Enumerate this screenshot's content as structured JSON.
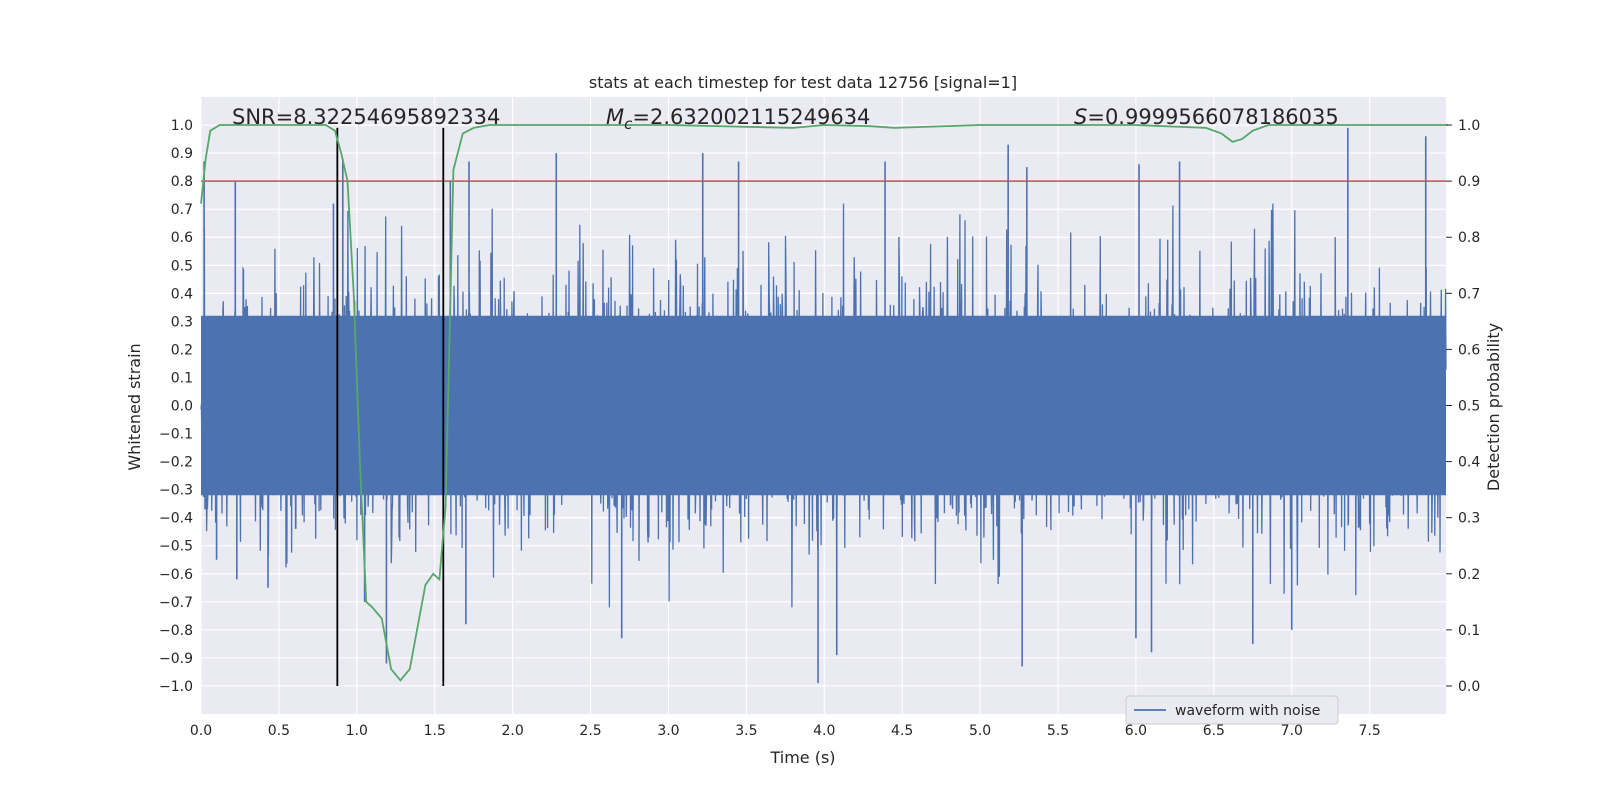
{
  "chart_data": {
    "type": "line",
    "title": "stats at each timestep for test data 12756 [signal=1]",
    "xlabel": "Time (s)",
    "ylabel": "Whitened strain",
    "y2label": "Detection probability",
    "xlim": [
      0.0,
      7.99
    ],
    "ylim": [
      -1.1,
      1.1
    ],
    "y2lim": [
      -0.05,
      1.05
    ],
    "x_ticks": [
      0.0,
      0.5,
      1.0,
      1.5,
      2.0,
      2.5,
      3.0,
      3.5,
      4.0,
      4.5,
      5.0,
      5.5,
      6.0,
      6.5,
      7.0,
      7.5
    ],
    "x_tick_labels": [
      "0.0",
      "0.5",
      "1.0",
      "1.5",
      "2.0",
      "2.5",
      "3.0",
      "3.5",
      "4.0",
      "4.5",
      "5.0",
      "5.5",
      "6.0",
      "6.5",
      "7.0",
      "7.5"
    ],
    "y_ticks": [
      -1.0,
      -0.9,
      -0.8,
      -0.7,
      -0.6,
      -0.5,
      -0.4,
      -0.3,
      -0.2,
      -0.1,
      0.0,
      0.1,
      0.2,
      0.3,
      0.4,
      0.5,
      0.6,
      0.7,
      0.8,
      0.9,
      1.0
    ],
    "y_tick_labels": [
      "−1.0",
      "−0.9",
      "−0.8",
      "−0.7",
      "−0.6",
      "−0.5",
      "−0.4",
      "−0.3",
      "−0.2",
      "−0.1",
      "0.0",
      "0.1",
      "0.2",
      "0.3",
      "0.4",
      "0.5",
      "0.6",
      "0.7",
      "0.8",
      "0.9",
      "1.0"
    ],
    "y2_ticks": [
      0.0,
      0.1,
      0.2,
      0.3,
      0.4,
      0.5,
      0.6,
      0.7,
      0.8,
      0.9,
      1.0
    ],
    "y2_tick_labels": [
      "0.0",
      "0.1",
      "0.2",
      "0.3",
      "0.4",
      "0.5",
      "0.6",
      "0.7",
      "0.8",
      "0.9",
      "1.0"
    ],
    "grid": true,
    "legend_placement": "lower-right",
    "annotations": {
      "snr": "SNR=8.32254695892334",
      "mc_symbol": "M",
      "mc_sub": "c",
      "mc_value": "=2.632002115249634",
      "s_symbol": "S",
      "s_value": "=0.9999566078186035"
    },
    "series": [
      {
        "name": "waveform with noise",
        "axis": "left",
        "color": "#4c72b0",
        "style": "dense noise trace, amplitude roughly ±0.5 with spikes up to ±1.0",
        "spikes": [
          {
            "x": 0.02,
            "y": 0.87
          },
          {
            "x": 0.22,
            "y": 0.8
          },
          {
            "x": 0.85,
            "y": 0.72
          },
          {
            "x": 0.91,
            "y": 0.88
          },
          {
            "x": 1.6,
            "y": 0.8
          },
          {
            "x": 1.72,
            "y": 0.87
          },
          {
            "x": 2.28,
            "y": 0.9
          },
          {
            "x": 3.22,
            "y": 0.9
          },
          {
            "x": 3.45,
            "y": 0.87
          },
          {
            "x": 4.39,
            "y": 0.87
          },
          {
            "x": 5.18,
            "y": 0.93
          },
          {
            "x": 5.3,
            "y": 0.85
          },
          {
            "x": 6.02,
            "y": 0.86
          },
          {
            "x": 6.28,
            "y": 0.87
          },
          {
            "x": 7.36,
            "y": 0.99
          },
          {
            "x": 7.86,
            "y": 0.96
          },
          {
            "x": 0.1,
            "y": -0.55
          },
          {
            "x": 0.23,
            "y": -0.62
          },
          {
            "x": 0.43,
            "y": -0.65
          },
          {
            "x": 1.05,
            "y": -0.7
          },
          {
            "x": 1.19,
            "y": -0.92
          },
          {
            "x": 1.7,
            "y": -0.78
          },
          {
            "x": 2.7,
            "y": -0.83
          },
          {
            "x": 3.96,
            "y": -0.99
          },
          {
            "x": 4.08,
            "y": -0.89
          },
          {
            "x": 5.27,
            "y": -0.93
          },
          {
            "x": 6.0,
            "y": -0.83
          },
          {
            "x": 6.1,
            "y": -0.88
          },
          {
            "x": 6.75,
            "y": -0.85
          },
          {
            "x": 7.0,
            "y": -0.8
          }
        ]
      },
      {
        "name": "detection probability",
        "axis": "right",
        "color": "#55a868",
        "x": [
          0.0,
          0.03,
          0.06,
          0.12,
          0.2,
          0.4,
          0.6,
          0.8,
          0.86,
          0.9,
          0.94,
          0.98,
          1.02,
          1.06,
          1.1,
          1.16,
          1.22,
          1.28,
          1.34,
          1.38,
          1.44,
          1.49,
          1.53,
          1.57,
          1.62,
          1.68,
          1.75,
          1.85,
          2.0,
          3.0,
          3.8,
          4.0,
          4.3,
          4.45,
          5.0,
          6.0,
          6.45,
          6.55,
          6.62,
          6.68,
          6.75,
          6.85,
          7.0,
          8.0
        ],
        "y": [
          0.86,
          0.94,
          0.99,
          1.0,
          1.0,
          1.0,
          1.0,
          1.0,
          0.99,
          0.95,
          0.9,
          0.7,
          0.4,
          0.15,
          0.14,
          0.12,
          0.03,
          0.01,
          0.03,
          0.09,
          0.18,
          0.2,
          0.19,
          0.32,
          0.92,
          0.985,
          0.995,
          1.0,
          1.0,
          1.0,
          0.995,
          1.0,
          0.998,
          0.995,
          1.0,
          1.0,
          0.995,
          0.985,
          0.97,
          0.975,
          0.99,
          1.0,
          1.0,
          1.0
        ]
      }
    ],
    "threshold": {
      "axis": "right",
      "value": 0.9,
      "color": "#c44e52"
    },
    "event_lines": [
      {
        "x": 0.875
      },
      {
        "x": 1.555
      }
    ]
  }
}
